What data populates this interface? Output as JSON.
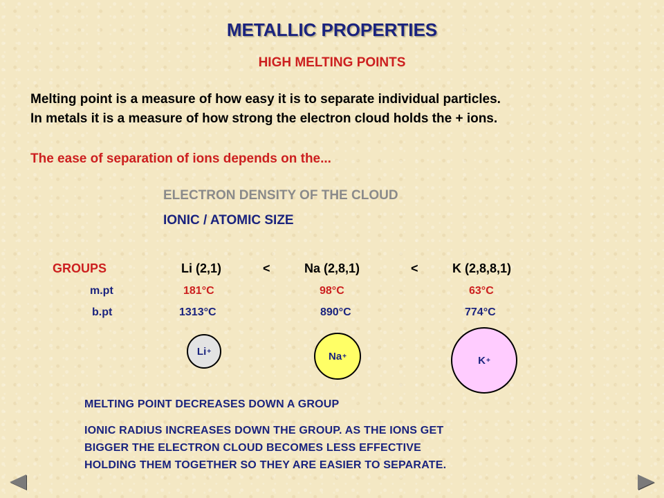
{
  "title": "METALLIC PROPERTIES",
  "subtitle": "HIGH MELTING POINTS",
  "intro": [
    "Melting point is a measure of how easy it is to separate individual particles.",
    "In metals it is a measure of how strong the electron cloud holds the + ions."
  ],
  "ease_text": "The ease of separation of ions depends on the...",
  "factors": [
    "ELECTRON DENSITY OF THE CLOUD",
    "IONIC / ATOMIC SIZE"
  ],
  "groups": {
    "label": "GROUPS",
    "elements": [
      "Li (2,1)",
      "Na (2,8,1)",
      "K (2,8,8,1)"
    ],
    "comparator": "<",
    "mpt_label": "m.pt",
    "bpt_label": "b.pt",
    "mpt": [
      "181°C",
      "98°C",
      "63°C"
    ],
    "bpt": [
      "1313°C",
      "890°C",
      "774°C"
    ]
  },
  "ions": [
    {
      "symbol": "Li",
      "charge": "+",
      "color": "#e3e3e3"
    },
    {
      "symbol": "Na",
      "charge": "+",
      "color": "#ffff66"
    },
    {
      "symbol": "K",
      "charge": "+",
      "color": "#ffccff"
    }
  ],
  "conclusion_title": "MELTING POINT DECREASES DOWN A GROUP",
  "conclusion_lines": [
    "IONIC RADIUS INCREASES DOWN THE GROUP. AS THE IONS GET",
    "BIGGER THE ELECTRON CLOUD BECOMES LESS EFFECTIVE",
    "HOLDING THEM TOGETHER SO THEY ARE EASIER TO SEPARATE."
  ],
  "nav": {
    "prev_icon": "triangle-left-icon",
    "next_icon": "triangle-right-icon"
  },
  "colors": {
    "title": "#1a237e",
    "accent_red": "#cc1f1f",
    "gray": "#8a8a8a",
    "background": "#f4e8c4"
  }
}
